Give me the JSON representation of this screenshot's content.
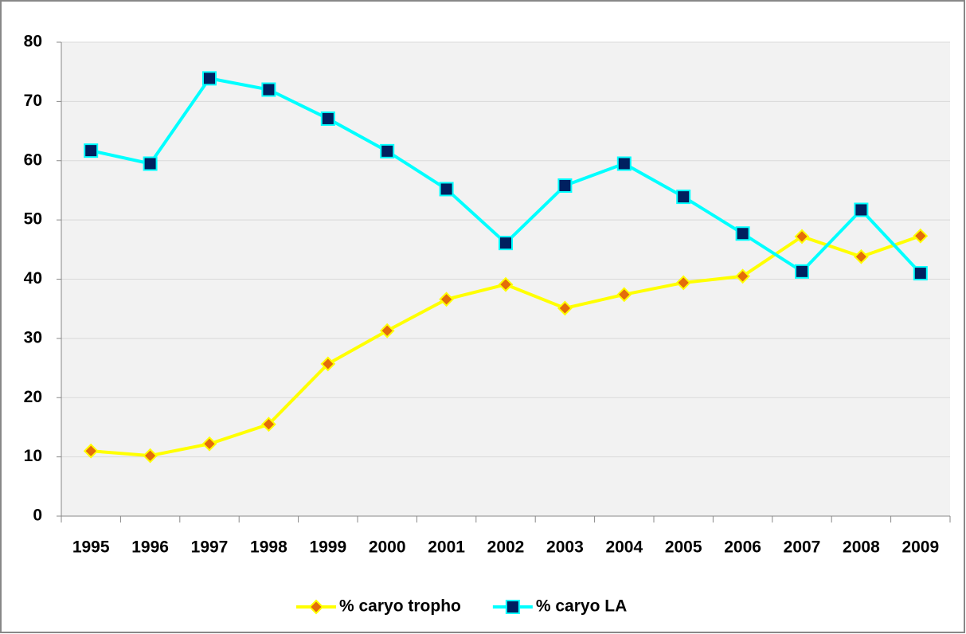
{
  "chart_data": {
    "type": "line",
    "categories": [
      "1995",
      "1996",
      "1997",
      "1998",
      "1999",
      "2000",
      "2001",
      "2002",
      "2003",
      "2004",
      "2005",
      "2006",
      "2007",
      "2008",
      "2009"
    ],
    "series": [
      {
        "name": "% caryo tropho",
        "color": "#ffff00",
        "marker_color": "#e46c0a",
        "marker": "diamond",
        "values": [
          11.0,
          10.2,
          12.2,
          15.5,
          25.7,
          31.3,
          36.6,
          39.1,
          35.1,
          37.4,
          39.4,
          40.5,
          47.2,
          43.8,
          47.3
        ]
      },
      {
        "name": "% caryo LA",
        "color": "#00ffff",
        "marker_color": "#002060",
        "marker": "square",
        "values": [
          61.7,
          59.5,
          73.9,
          72.0,
          67.1,
          61.6,
          55.2,
          46.1,
          55.8,
          59.5,
          53.9,
          47.7,
          41.3,
          51.7,
          41.0
        ]
      }
    ],
    "ylim": [
      0,
      80
    ],
    "yticks": [
      0,
      10,
      20,
      30,
      40,
      50,
      60,
      70,
      80
    ],
    "grid": true,
    "legend": "bottom"
  }
}
